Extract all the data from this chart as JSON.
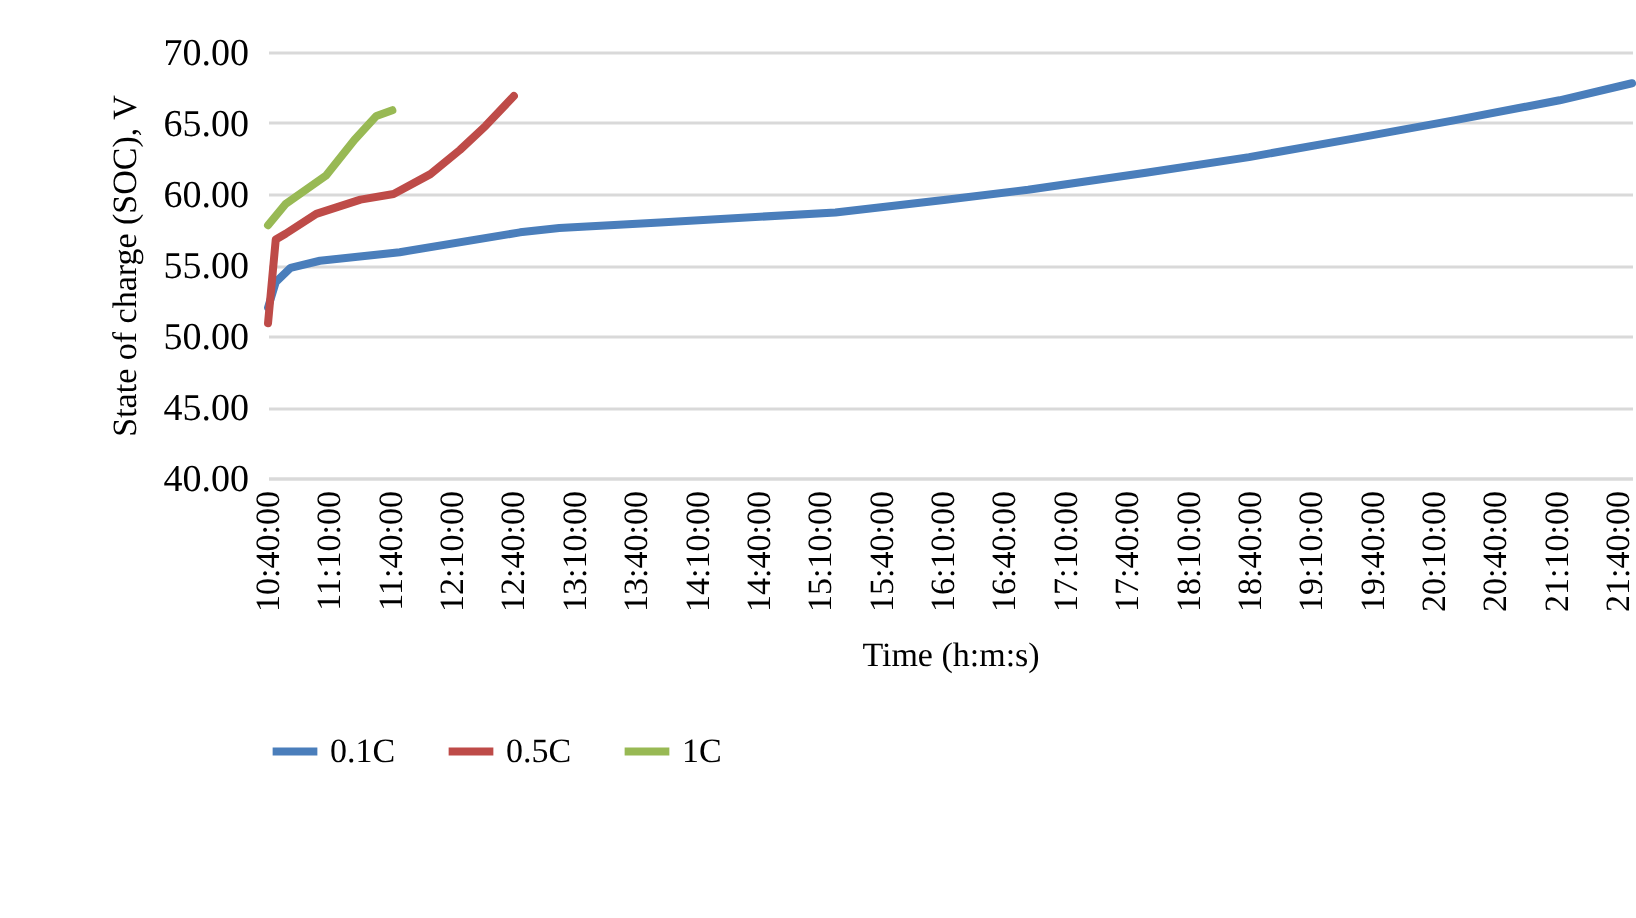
{
  "chart_data": {
    "type": "line",
    "xlabel": "Time (h:m:s)",
    "ylabel": "State of charge (SOC), V",
    "xlim": [
      10.6667,
      21.78
    ],
    "ylim": [
      40,
      70
    ],
    "xticks": [
      {
        "value": 10.6667,
        "label": "10:40:00"
      },
      {
        "value": 11.1667,
        "label": "11:10:00"
      },
      {
        "value": 11.6667,
        "label": "11:40:00"
      },
      {
        "value": 12.1667,
        "label": "12:10:00"
      },
      {
        "value": 12.6667,
        "label": "12:40:00"
      },
      {
        "value": 13.1667,
        "label": "13:10:00"
      },
      {
        "value": 13.6667,
        "label": "13:40:00"
      },
      {
        "value": 14.1667,
        "label": "14:10:00"
      },
      {
        "value": 14.6667,
        "label": "14:40:00"
      },
      {
        "value": 15.1667,
        "label": "15:10:00"
      },
      {
        "value": 15.6667,
        "label": "15:40:00"
      },
      {
        "value": 16.1667,
        "label": "16:10:00"
      },
      {
        "value": 16.6667,
        "label": "16:40:00"
      },
      {
        "value": 17.1667,
        "label": "17:10:00"
      },
      {
        "value": 17.6667,
        "label": "17:40:00"
      },
      {
        "value": 18.1667,
        "label": "18:10:00"
      },
      {
        "value": 18.6667,
        "label": "18:40:00"
      },
      {
        "value": 19.1667,
        "label": "19:10:00"
      },
      {
        "value": 19.6667,
        "label": "19:40:00"
      },
      {
        "value": 20.1667,
        "label": "20:10:00"
      },
      {
        "value": 20.6667,
        "label": "20:40:00"
      },
      {
        "value": 21.1667,
        "label": "21:10:00"
      },
      {
        "value": 21.6667,
        "label": "21:40:00"
      }
    ],
    "yticks": [
      {
        "value": 40,
        "label": "40.00"
      },
      {
        "value": 45,
        "label": "45.00"
      },
      {
        "value": 50,
        "label": "50.00"
      },
      {
        "value": 55,
        "label": "55.00"
      },
      {
        "value": 60,
        "label": "60.00"
      },
      {
        "value": 65,
        "label": "65.00"
      },
      {
        "value": 70,
        "label": "70.00"
      }
    ],
    "grid": "y",
    "legend": "bottom",
    "marker": "none",
    "line_style": "solid",
    "series": [
      {
        "name": "0.1C",
        "color": "#4a7ebb",
        "x": [
          10.667,
          10.73,
          10.85,
          11.09,
          11.74,
          12.72,
          13.04,
          13.86,
          15.29,
          16.19,
          16.86,
          17.82,
          18.66,
          19.51,
          20.34,
          21.19,
          21.78
        ],
        "values": [
          52.0,
          53.8,
          54.8,
          55.3,
          55.9,
          57.3,
          57.6,
          58.0,
          58.7,
          59.6,
          60.3,
          61.5,
          62.6,
          63.9,
          65.2,
          66.6,
          67.8
        ]
      },
      {
        "name": "0.5C",
        "color": "#be4b48",
        "x": [
          10.667,
          10.73,
          10.81,
          11.06,
          11.42,
          11.69,
          11.99,
          12.23,
          12.44,
          12.67
        ],
        "values": [
          50.9,
          56.8,
          57.2,
          58.6,
          59.6,
          60.0,
          61.4,
          63.1,
          64.8,
          66.9
        ]
      },
      {
        "name": "1C",
        "color": "#98b954",
        "x": [
          10.667,
          10.81,
          11.14,
          11.37,
          11.55,
          11.68
        ],
        "values": [
          57.8,
          59.3,
          61.3,
          63.8,
          65.5,
          65.9
        ]
      }
    ]
  }
}
